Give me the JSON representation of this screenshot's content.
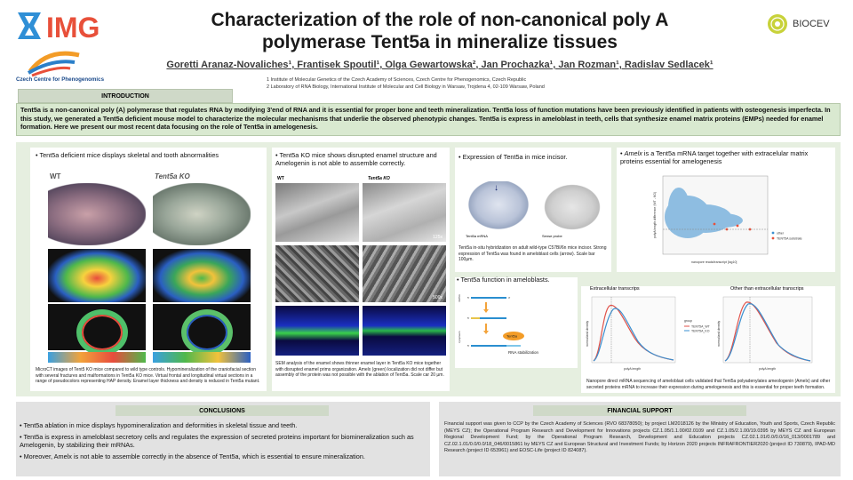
{
  "logos": {
    "img_text": "IMG",
    "ccp_text": "Czech Centre for Phenogenomics",
    "biocev_text": "BIOCEV"
  },
  "title_line1": "Characterization of the role of non-canonical poly A",
  "title_line2": "polymerase Tent5a in mineralize tissues",
  "authors": "Goretti Aranaz-Novaliches¹, Frantisek Spoutil¹,  Olga Gewartowska², Jan Prochazka¹, Jan Rozman¹, Radislav Sedlacek¹",
  "affiliations": [
    "1 Institute of Molecular Genetics of the Czech Academy of Sciences, Czech Centre for Phenogenomics, Czech Republic",
    "2 Laboratory of RNA Biology, International Institute of Molecular and Cell Biology in Warsaw, Trojdena 4, 02-109 Warsaw, Poland"
  ],
  "intro": {
    "heading": "INTRODUCTION",
    "text": "Tent5a is a non-canonical poly (A) polymerase that regulates RNA by modifying 3'end of RNA and it is essential for proper bone and teeth mineralization. Tent5a loss of function mutations have been previously identified in patients with osteogenesis imperfecta. In this study, we generated a Tent5a deficient mouse model to characterize the molecular mechanisms that underlie the observed phenotypic changes. Tent5a is express in ameloblast in teeth, cells that synthesize enamel matrix proteins (EMPs) needed for enamel formation.  Here we present our most recent data focusing on the role of Tent5a in amelogenesis."
  },
  "panel1": {
    "bullet": "• Tent5a deficient mice displays skeletal and tooth abnormalities",
    "label_wt": "WT",
    "label_ko": "Tent5a KO",
    "caption": "MicroCT images of Tent5 KO mice compared to wild type controls. Hypomineralization of the craniofacial section with several fractures and malformations in Tent5a KO mice. Virtual frontal and longitudinal virtual sections in a range of pseudocolors representing HAP density. Enamel layer thickness and density is reduced in Tent5a mutant."
  },
  "panel2": {
    "bullet": "• Tent5a KO mice shows disrupted enamel structure and Amelogenin is not able to assemble correctly.",
    "label_wt": "WT",
    "label_ko": "Tent5a KO",
    "scale1": "125x",
    "scale2": "500x",
    "caption": "SEM analysis of the enamel shows thinner enamel layer in Tent5a KO mice together with disrupted enamel prims organization.  Amelx (green) localization did not differ but assembly of the protein was not possible with the ablation of Tent5a. Scale car 20 µm."
  },
  "panel3": {
    "bullet": "• Expression of Tent5a in mice incisor.",
    "label_left": "Tent5a mRNA",
    "label_right": "Sense probe",
    "caption": "Tent5a in-situ hybridization on adult wild-type C57Bl/6n mice incisor. Strong expression of Tent5a was found in ameloblast cells (arrow). Scale bar 100µm."
  },
  "panel4": {
    "bullet": "• Tent5a function in ameloblasts.",
    "side_label_top": "mRNA",
    "side_label_bottom": "cytoplasm",
    "tent5a_label": "Tent5a",
    "stab_label": "RNA stabilization",
    "five_prime": "5'",
    "three_prime": "3'"
  },
  "panel5": {
    "bullet_prefix": "• ",
    "bullet_italic": "Amelx",
    "bullet_rest": " is  a Tent5a mRNA target together with extracelular matrix proteins essential for amelogenesis",
    "ylabel": "polyA length difference (WT - KO)",
    "xlabel": "nanopore reads/transcript [log10]",
    "legend_other": "other",
    "legend_tent": "TENT5A substrate"
  },
  "panel6": {
    "title_left": "Extracellular transcrips",
    "title_right": "Other than extracellular transcrips",
    "xlabel": "polyA length",
    "ylabel": "normalized density",
    "legend_title": "group",
    "legend_wt": "TENT5A_WT",
    "legend_ko": "TENT5A_KO",
    "caption": "Nanopore direct mRNA sequencing of ameloblast cells validated that Tent5a polyadenylates ameologenin (Amelx) and other secreted proteins mRNA to increase their expression during amelogenesis and this is essential for proper teeth formation."
  },
  "conclusions": {
    "heading": "CONCLUSIONS",
    "items": [
      "• Tent5a ablation in mice displays hypomineralization and deformities in skeletal tissue and teeth.",
      "• Tent5a is express in ameloblast secretory cells and regulates the expression of secreted proteins important for biomineralization such as Amelogenin, by stabilizing their mRNAs.",
      "• Moreover, Amelx is not able to assemble correctly in the absence of Tent5a, which is essential to ensure mineralization."
    ]
  },
  "financial": {
    "heading": "FINANCIAL SUPPORT",
    "text": "Financial support was given to CCP by the Czech Academy of Sciences (RVO 68378050); by project LM2018126 by the Ministry of Education, Youth and Sports, Czech Republic (MEYS CZ); the Operational Program Research and Development for Innovations projects CZ.1.05/1.1.00/02.0109 and CZ.1.05/2.1.00/19.0395 by MEYS CZ and European Regional Development Fund; by the Operational Program Research, Development and Education projects CZ.02.1.01/0.0/0.0/16_013/0001789 and CZ.02.1.01/0.0/0.0/18_046/0015861 by MEYS CZ and European Structural and Investment Funds; by Horizon 2020 projects INFRAFRONTIER2020 (project ID 730879), IPAD-MD Research (project ID 653961) and EOSC-Life (project ID 824087)."
  },
  "colors": {
    "img_blue": "#2f8fd6",
    "img_red": "#e8503a",
    "green_panel": "#e6efe0",
    "wt_curve": "#e0524a",
    "ko_curve": "#3a8fd0"
  }
}
